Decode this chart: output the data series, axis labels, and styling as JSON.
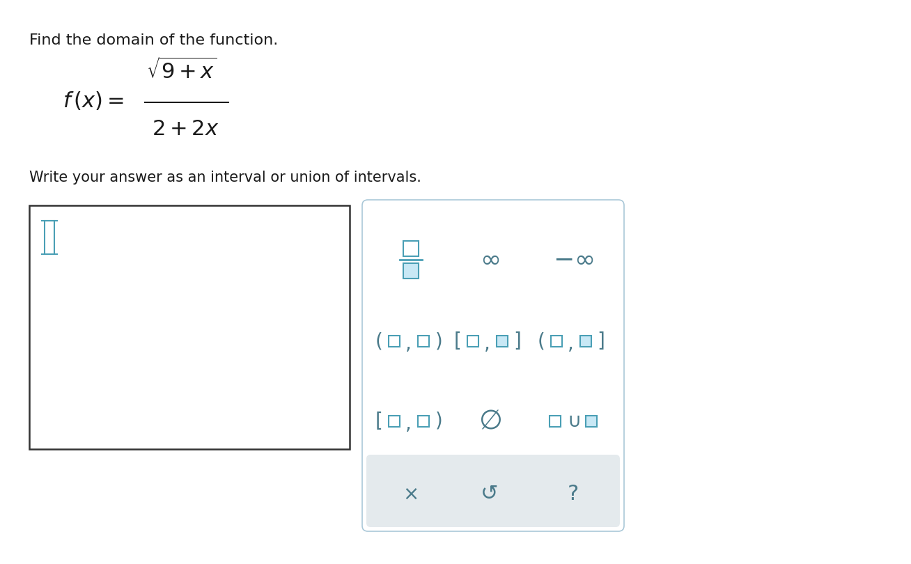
{
  "background_color": "#ffffff",
  "title_text": "Find the domain of the function.",
  "title_fontsize": 16,
  "subtitle_text": "Write your answer as an interval or union of intervals.",
  "subtitle_fontsize": 15,
  "teal_color": "#4a9fb5",
  "gray_text": "#4a7a8a",
  "panel_border": "#aac8d8",
  "symbol_bg": "#c8e8f5",
  "gray_panel_bg": "#e4eaed"
}
